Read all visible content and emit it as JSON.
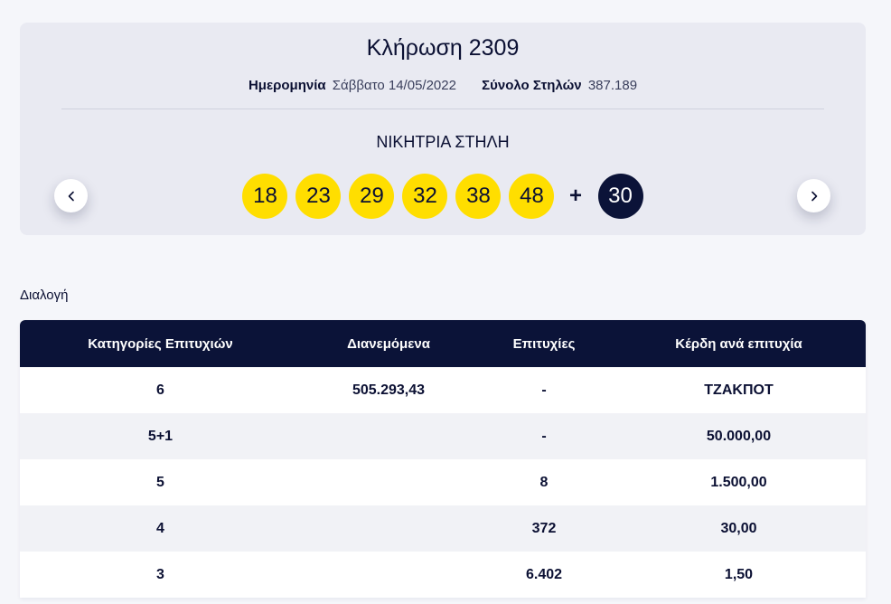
{
  "draw": {
    "title": "Κλήρωση 2309",
    "date_label": "Ημερομηνία",
    "date_value": "Σάββατο 14/05/2022",
    "columns_label": "Σύνολο Στηλών",
    "columns_value": "387.189",
    "winning_label": "ΝΙΚΗΤΡΙΑ ΣΤΗΛΗ",
    "numbers": [
      "18",
      "23",
      "29",
      "32",
      "38",
      "48"
    ],
    "plus": "+",
    "bonus": "30",
    "colors": {
      "ball": "#ffde00",
      "bonus_ball": "#0b1338"
    }
  },
  "nav": {
    "prev_icon": "chevron-left-icon",
    "next_icon": "chevron-right-icon"
  },
  "section": {
    "label": "Διαλογή"
  },
  "table": {
    "headers": [
      "Κατηγορίες Επιτυχιών",
      "Διανεμόμενα",
      "Επιτυχίες",
      "Κέρδη ανά επιτυχία"
    ],
    "rows": [
      [
        "6",
        "505.293,43",
        "-",
        "ΤΖΑΚΠΟΤ"
      ],
      [
        "5+1",
        "",
        "-",
        "50.000,00"
      ],
      [
        "5",
        "",
        "8",
        "1.500,00"
      ],
      [
        "4",
        "",
        "372",
        "30,00"
      ],
      [
        "3",
        "",
        "6.402",
        "1,50"
      ]
    ],
    "header_bg": "#0b1338"
  }
}
